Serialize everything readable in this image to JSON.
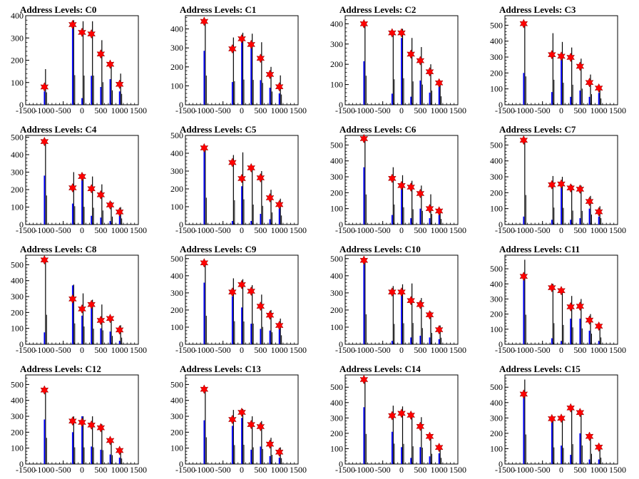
{
  "colors": {
    "hist_black": "#000000",
    "hist_blue": "#0000ff",
    "marker": "#ff0000",
    "axis": "#000000"
  },
  "chart_data": {
    "type": "bar",
    "layout_rows": 4,
    "layout_cols": 4,
    "x_positions": [
      -1000,
      -250,
      0,
      250,
      500,
      750,
      1000
    ],
    "xlim": [
      -1500,
      1500
    ],
    "xticks": [
      "-1500",
      "-1000",
      "-500",
      "0",
      "500",
      "1000",
      "1500"
    ],
    "plots": [
      {
        "title": "Address Levels: C0",
        "ylim": [
          0,
          400
        ],
        "yticks": [
          0,
          100,
          200,
          300,
          400
        ],
        "x_active": [
          -1000,
          -250,
          0,
          250,
          500,
          750,
          1000
        ],
        "peaks": [
          80,
          360,
          325,
          318,
          228,
          182,
          92
        ],
        "blue": [
          60,
          360,
          30,
          130,
          80,
          115,
          60
        ],
        "black": [
          160,
          380,
          375,
          375,
          290,
          185,
          140
        ]
      },
      {
        "title": "Address Levels: C1",
        "ylim": [
          0,
          470
        ],
        "yticks": [
          0,
          100,
          200,
          300,
          400
        ],
        "x_active": [
          -1000,
          -250,
          0,
          250,
          500,
          750,
          1000
        ],
        "peaks": [
          440,
          295,
          348,
          318,
          245,
          160,
          95
        ],
        "blue": [
          285,
          120,
          330,
          300,
          130,
          90,
          60
        ],
        "black": [
          440,
          355,
          380,
          375,
          330,
          200,
          155
        ]
      },
      {
        "title": "Address Levels: C2",
        "ylim": [
          0,
          440
        ],
        "yticks": [
          0,
          100,
          200,
          300,
          400
        ],
        "x_active": [
          -1000,
          -250,
          0,
          250,
          500,
          750,
          1000
        ],
        "peaks": [
          400,
          355,
          355,
          250,
          218,
          163,
          108
        ],
        "blue": [
          215,
          55,
          330,
          40,
          120,
          60,
          90
        ],
        "black": [
          410,
          360,
          375,
          330,
          285,
          200,
          120
        ]
      },
      {
        "title": "Address Levels: C3",
        "ylim": [
          0,
          560
        ],
        "yticks": [
          0,
          100,
          200,
          300,
          400,
          500
        ],
        "x_active": [
          -1000,
          -250,
          0,
          250,
          500,
          750,
          1000
        ],
        "peaks": [
          510,
          315,
          305,
          298,
          242,
          140,
          105
        ],
        "blue": [
          200,
          80,
          300,
          50,
          90,
          50,
          75
        ],
        "black": [
          510,
          450,
          395,
          360,
          290,
          190,
          115
        ]
      },
      {
        "title": "Address Levels: C4",
        "ylim": [
          0,
          510
        ],
        "yticks": [
          0,
          100,
          200,
          300,
          400,
          500
        ],
        "x_active": [
          -1000,
          -250,
          0,
          250,
          500,
          750,
          1000
        ],
        "peaks": [
          475,
          210,
          275,
          205,
          170,
          112,
          72
        ],
        "blue": [
          280,
          120,
          280,
          50,
          40,
          20,
          50
        ],
        "black": [
          475,
          300,
          290,
          275,
          230,
          130,
          100
        ]
      },
      {
        "title": "Address Levels: C5",
        "ylim": [
          0,
          500
        ],
        "yticks": [
          0,
          100,
          200,
          300,
          400,
          500
        ],
        "x_active": [
          -1000,
          -250,
          0,
          250,
          500,
          750,
          1000
        ],
        "peaks": [
          430,
          348,
          258,
          318,
          262,
          150,
          112
        ],
        "blue": [
          415,
          20,
          215,
          20,
          60,
          30,
          90
        ],
        "black": [
          430,
          390,
          405,
          320,
          300,
          195,
          145
        ]
      },
      {
        "title": "Address Levels: C6",
        "ylim": [
          0,
          560
        ],
        "yticks": [
          0,
          100,
          200,
          300,
          400,
          500
        ],
        "x_active": [
          -1000,
          -250,
          0,
          250,
          500,
          750,
          1000
        ],
        "peaks": [
          540,
          290,
          245,
          235,
          195,
          100,
          85
        ],
        "blue": [
          360,
          60,
          240,
          40,
          100,
          40,
          60
        ],
        "black": [
          540,
          360,
          310,
          275,
          245,
          190,
          100
        ]
      },
      {
        "title": "Address Levels: C7",
        "ylim": [
          0,
          560
        ],
        "yticks": [
          0,
          100,
          200,
          300,
          400,
          500
        ],
        "x_active": [
          -1000,
          -250,
          0,
          250,
          500,
          750,
          1000
        ],
        "peaks": [
          530,
          250,
          255,
          230,
          222,
          145,
          80
        ],
        "blue": [
          50,
          30,
          245,
          30,
          40,
          100,
          50
        ],
        "black": [
          530,
          305,
          300,
          250,
          245,
          180,
          115
        ]
      },
      {
        "title": "Address Levels: C8",
        "ylim": [
          0,
          560
        ],
        "yticks": [
          0,
          100,
          200,
          300,
          400,
          500
        ],
        "x_active": [
          -1000,
          -250,
          0,
          250,
          500,
          750,
          1000
        ],
        "peaks": [
          530,
          285,
          222,
          250,
          150,
          162,
          90
        ],
        "blue": [
          75,
          370,
          180,
          270,
          100,
          80,
          20
        ],
        "black": [
          530,
          375,
          320,
          280,
          250,
          150,
          120
        ]
      },
      {
        "title": "Address Levels: C9",
        "ylim": [
          0,
          520
        ],
        "yticks": [
          0,
          100,
          200,
          300,
          400,
          500
        ],
        "x_active": [
          -1000,
          -250,
          0,
          250,
          500,
          750,
          1000
        ],
        "peaks": [
          475,
          305,
          348,
          310,
          222,
          170,
          110
        ],
        "blue": [
          360,
          280,
          215,
          120,
          90,
          80,
          90
        ],
        "black": [
          475,
          385,
          380,
          345,
          290,
          200,
          150
        ]
      },
      {
        "title": "Address Levels: C10",
        "ylim": [
          0,
          520
        ],
        "yticks": [
          0,
          100,
          200,
          300,
          400,
          500
        ],
        "x_active": [
          -1000,
          -250,
          0,
          250,
          500,
          750,
          1000
        ],
        "peaks": [
          490,
          305,
          305,
          255,
          232,
          172,
          85
        ],
        "blue": [
          490,
          20,
          300,
          40,
          50,
          40,
          30
        ],
        "black": [
          500,
          340,
          350,
          355,
          270,
          190,
          110
        ]
      },
      {
        "title": "Address Levels: C11",
        "ylim": [
          0,
          590
        ],
        "yticks": [
          0,
          100,
          200,
          300,
          400,
          500
        ],
        "x_active": [
          -1000,
          -250,
          0,
          250,
          500,
          750,
          1000
        ],
        "peaks": [
          450,
          375,
          355,
          248,
          252,
          160,
          120
        ],
        "blue": [
          450,
          40,
          20,
          170,
          170,
          90,
          20
        ],
        "black": [
          560,
          400,
          365,
          320,
          300,
          200,
          130
        ]
      },
      {
        "title": "Address Levels: C12",
        "ylim": [
          0,
          560
        ],
        "yticks": [
          0,
          100,
          200,
          300,
          400,
          500
        ],
        "x_active": [
          -1000,
          -250,
          0,
          250,
          500,
          750,
          1000
        ],
        "peaks": [
          465,
          270,
          262,
          245,
          228,
          148,
          85
        ],
        "blue": [
          280,
          200,
          300,
          110,
          90,
          60,
          40
        ],
        "black": [
          470,
          300,
          300,
          300,
          250,
          160,
          100
        ]
      },
      {
        "title": "Address Levels: C13",
        "ylim": [
          0,
          560
        ],
        "yticks": [
          0,
          100,
          200,
          300,
          400,
          500
        ],
        "x_active": [
          -1000,
          -250,
          0,
          250,
          500,
          750,
          1000
        ],
        "peaks": [
          470,
          280,
          325,
          248,
          235,
          125,
          75
        ],
        "blue": [
          275,
          240,
          290,
          90,
          110,
          50,
          40
        ],
        "black": [
          480,
          340,
          345,
          300,
          270,
          165,
          105
        ]
      },
      {
        "title": "Address Levels: C14",
        "ylim": [
          0,
          580
        ],
        "yticks": [
          0,
          100,
          200,
          300,
          400,
          500
        ],
        "x_active": [
          -1000,
          -250,
          0,
          250,
          500,
          750,
          1000
        ],
        "peaks": [
          550,
          315,
          330,
          318,
          245,
          180,
          108
        ],
        "blue": [
          370,
          210,
          110,
          40,
          110,
          50,
          70
        ],
        "black": [
          560,
          380,
          375,
          330,
          305,
          190,
          115
        ]
      },
      {
        "title": "Address Levels: C15",
        "ylim": [
          0,
          580
        ],
        "yticks": [
          0,
          100,
          200,
          300,
          400,
          500
        ],
        "x_active": [
          -1000,
          -250,
          0,
          250,
          500,
          750,
          1000
        ],
        "peaks": [
          455,
          295,
          298,
          365,
          335,
          180,
          110
        ],
        "blue": [
          450,
          290,
          120,
          60,
          200,
          30,
          30
        ],
        "black": [
          550,
          310,
          300,
          370,
          345,
          190,
          120
        ]
      }
    ]
  }
}
